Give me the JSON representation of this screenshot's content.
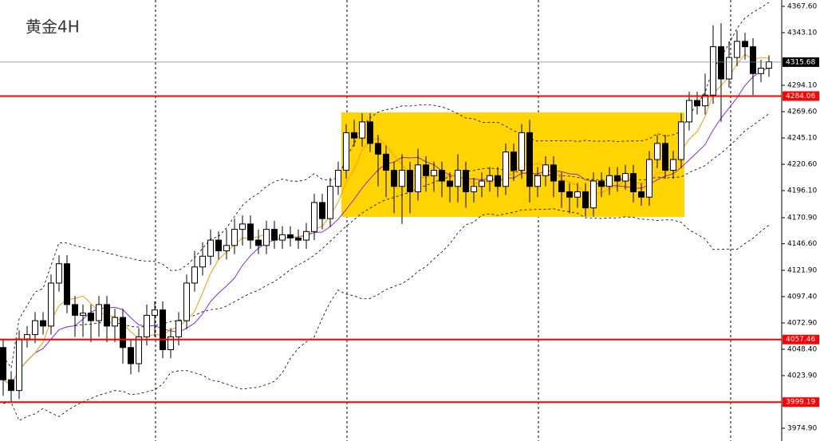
{
  "chart_data": {
    "type": "candlestick",
    "title": "黄金4H",
    "ylim": [
      3963.0,
      4373.5
    ],
    "yticks": [
      {
        "value": 4367.6,
        "label": "4367.60"
      },
      {
        "value": 4343.1,
        "label": "4343.10"
      },
      {
        "value": 4294.1,
        "label": "4294.10"
      },
      {
        "value": 4269.6,
        "label": "4269.60"
      },
      {
        "value": 4245.1,
        "label": "4245.10"
      },
      {
        "value": 4220.6,
        "label": "4220.60"
      },
      {
        "value": 4196.1,
        "label": "4196.10"
      },
      {
        "value": 4170.9,
        "label": "4170.90"
      },
      {
        "value": 4146.6,
        "label": "4146.60"
      },
      {
        "value": 4121.9,
        "label": "4121.90"
      },
      {
        "value": 4097.4,
        "label": "4097.40"
      },
      {
        "value": 4072.9,
        "label": "4072.90"
      },
      {
        "value": 4048.4,
        "label": "4048.40"
      },
      {
        "value": 4023.9,
        "label": "4023.90"
      },
      {
        "value": 3974.9,
        "label": "3974.90"
      }
    ],
    "levels": [
      {
        "value": 4284.06,
        "label": "4284.06"
      },
      {
        "value": 4057.46,
        "label": "4057.46"
      },
      {
        "value": 3999.19,
        "label": "3999.19"
      }
    ],
    "level_color": "#ff0000",
    "current_price": {
      "value": 4315.68,
      "label": "4315.68"
    },
    "open": [
      4050,
      4020,
      4010,
      4058,
      4062,
      4075,
      4070,
      4110,
      4128,
      4090,
      4080,
      4082,
      4075,
      4090,
      4070,
      4078,
      4050,
      4035,
      4060,
      4080,
      4085,
      4048,
      4060,
      4075,
      4110,
      4125,
      4135,
      4150,
      4140,
      4145,
      4160,
      4165,
      4150,
      4145,
      4160,
      4150,
      4155,
      4152,
      4150,
      4158,
      4185,
      4170,
      4200,
      4215,
      4250,
      4245,
      4260,
      4240,
      4230,
      4215,
      4200,
      4215,
      4195,
      4220,
      4210,
      4215,
      4205,
      4200,
      4215,
      4195,
      4200,
      4205,
      4210,
      4200,
      4232,
      4215,
      4250,
      4200,
      4210,
      4220,
      4205,
      4195,
      4190,
      4195,
      4180,
      4205,
      4200,
      4210,
      4205,
      4212,
      4195,
      4190,
      4225,
      4240,
      4215,
      4225,
      4260,
      4280,
      4275,
      4285,
      4330,
      4300,
      4320,
      4335,
      4330,
      4305,
      4310
    ],
    "high": [
      4058,
      4028,
      4066,
      4070,
      4083,
      4083,
      4118,
      4136,
      4136,
      4098,
      4090,
      4090,
      4098,
      4098,
      4086,
      4086,
      4058,
      4068,
      4090,
      4093,
      4093,
      4068,
      4083,
      4118,
      4140,
      4148,
      4160,
      4158,
      4160,
      4170,
      4173,
      4173,
      4160,
      4168,
      4168,
      4163,
      4163,
      4160,
      4166,
      4193,
      4193,
      4208,
      4223,
      4258,
      4262,
      4268,
      4268,
      4248,
      4238,
      4223,
      4230,
      4223,
      4235,
      4228,
      4223,
      4223,
      4213,
      4230,
      4223,
      4208,
      4213,
      4218,
      4218,
      4240,
      4240,
      4258,
      4262,
      4218,
      4228,
      4228,
      4213,
      4203,
      4203,
      4203,
      4213,
      4213,
      4218,
      4218,
      4220,
      4220,
      4203,
      4233,
      4248,
      4248,
      4233,
      4268,
      4288,
      4288,
      4305,
      4350,
      4352,
      4335,
      4345,
      4343,
      4338,
      4318,
      4322
    ],
    "low": [
      4005,
      3999,
      4002,
      4050,
      4054,
      4062,
      4062,
      4102,
      4082,
      4060,
      4060,
      4055,
      4060,
      4055,
      4055,
      4035,
      4025,
      4027,
      4052,
      4060,
      4040,
      4040,
      4052,
      4067,
      4102,
      4117,
      4127,
      4132,
      4132,
      4137,
      4145,
      4142,
      4137,
      4137,
      4142,
      4142,
      4144,
      4142,
      4142,
      4150,
      4160,
      4162,
      4192,
      4207,
      4237,
      4237,
      4232,
      4200,
      4190,
      4175,
      4165,
      4175,
      4187,
      4195,
      4195,
      4190,
      4185,
      4185,
      4180,
      4185,
      4190,
      4195,
      4190,
      4192,
      4205,
      4207,
      4185,
      4190,
      4200,
      4190,
      4180,
      4175,
      4180,
      4172,
      4172,
      4190,
      4192,
      4195,
      4197,
      4185,
      4182,
      4182,
      4217,
      4207,
      4207,
      4217,
      4252,
      4267,
      4267,
      4277,
      4260,
      4292,
      4312,
      4318,
      4285,
      4297,
      4302
    ],
    "close": [
      4020,
      4010,
      4058,
      4062,
      4075,
      4070,
      4110,
      4128,
      4090,
      4080,
      4082,
      4075,
      4090,
      4070,
      4078,
      4050,
      4035,
      4060,
      4080,
      4085,
      4048,
      4060,
      4075,
      4110,
      4125,
      4135,
      4150,
      4140,
      4145,
      4160,
      4165,
      4150,
      4145,
      4160,
      4150,
      4155,
      4152,
      4150,
      4158,
      4185,
      4170,
      4200,
      4215,
      4250,
      4245,
      4260,
      4240,
      4230,
      4215,
      4200,
      4215,
      4195,
      4220,
      4210,
      4215,
      4205,
      4200,
      4215,
      4195,
      4200,
      4205,
      4210,
      4200,
      4232,
      4215,
      4250,
      4200,
      4210,
      4220,
      4205,
      4195,
      4190,
      4195,
      4180,
      4205,
      4200,
      4210,
      4205,
      4212,
      4195,
      4190,
      4225,
      4240,
      4215,
      4225,
      4260,
      4280,
      4275,
      4285,
      4330,
      4300,
      4320,
      4335,
      4330,
      4305,
      4310,
      4316
    ]
  }
}
